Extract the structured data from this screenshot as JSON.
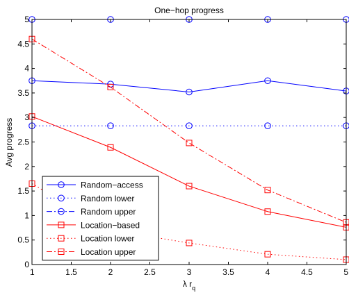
{
  "chart_data": {
    "type": "line",
    "title": "One−hop progress",
    "xlabel_main": "λ r",
    "xlabel_sub": "q",
    "ylabel": "Avg progress",
    "xlim": [
      1,
      5
    ],
    "ylim": [
      0,
      5
    ],
    "xticks": [
      1,
      1.5,
      2,
      2.5,
      3,
      3.5,
      4,
      4.5,
      5
    ],
    "yticks": [
      0,
      0.5,
      1,
      1.5,
      2,
      2.5,
      3,
      3.5,
      4,
      4.5,
      5
    ],
    "x_tick_labels": [
      "1",
      "1.5",
      "2",
      "2.5",
      "3",
      "3.5",
      "4",
      "4.5",
      "5"
    ],
    "y_tick_labels": [
      "0",
      "0.5",
      "1",
      "1.5",
      "2",
      "2.5",
      "3",
      "3.5",
      "4",
      "4.5",
      "5"
    ],
    "grid": false,
    "legend_position": "bottom-left",
    "x": [
      1,
      2,
      3,
      4,
      5
    ],
    "series": [
      {
        "name": "Random−access",
        "values": [
          3.75,
          3.68,
          3.52,
          3.75,
          3.54
        ],
        "color": "#0000ff",
        "dash": "solid",
        "marker": "circle"
      },
      {
        "name": "Random lower",
        "values": [
          2.83,
          2.83,
          2.83,
          2.83,
          2.83
        ],
        "color": "#0000ff",
        "dash": "dotted",
        "marker": "circle"
      },
      {
        "name": "Random upper",
        "values": [
          5.0,
          5.0,
          5.0,
          5.0,
          5.0
        ],
        "color": "#0000ff",
        "dash": "dashdot",
        "marker": "circle"
      },
      {
        "name": "Location−based",
        "values": [
          3.02,
          2.39,
          1.6,
          1.08,
          0.76
        ],
        "color": "#ff0000",
        "dash": "solid",
        "marker": "square"
      },
      {
        "name": "Location lower",
        "values": [
          1.65,
          0.7,
          0.44,
          0.21,
          0.1
        ],
        "color": "#ff0000",
        "dash": "dotted",
        "marker": "square"
      },
      {
        "name": "Location upper",
        "values": [
          4.6,
          3.62,
          2.48,
          1.52,
          0.86
        ],
        "color": "#ff0000",
        "dash": "dashdot",
        "marker": "square"
      }
    ]
  }
}
